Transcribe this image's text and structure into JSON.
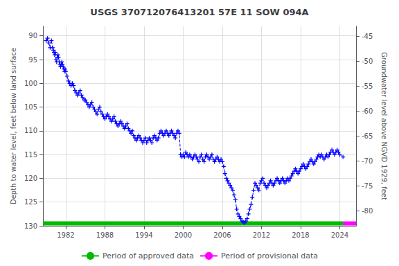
{
  "chart_data": {
    "type": "line",
    "title": "USGS 370712076413201 57E 11 SOW 094A",
    "ylabel": "Depth to water level, feet below land surface",
    "y2label": "Groundwater level above NGVD 1929, feet",
    "xlim": [
      1978.5,
      2026.5
    ],
    "xticks": [
      1982,
      1988,
      1994,
      2000,
      2006,
      2012,
      2018,
      2024
    ],
    "ylim": [
      130,
      88
    ],
    "yticks": [
      90,
      95,
      100,
      105,
      110,
      115,
      120,
      125,
      130
    ],
    "y2lim": [
      -83,
      -43
    ],
    "y2ticks": [
      -45,
      -50,
      -55,
      -60,
      -65,
      -70,
      -75,
      -80
    ],
    "grid": true,
    "legend": "bottom",
    "series": [
      {
        "color": "#0000FF",
        "marker": "plus",
        "line_style": "dashed",
        "x": [
          1979.0,
          1979.2,
          1979.4,
          1979.6,
          1979.8,
          1980.0,
          1980.1,
          1980.2,
          1980.3,
          1980.4,
          1980.5,
          1980.6,
          1980.7,
          1980.8,
          1980.9,
          1981.0,
          1981.1,
          1981.2,
          1981.3,
          1981.4,
          1981.5,
          1981.6,
          1981.7,
          1981.8,
          1981.9,
          1982.0,
          1982.2,
          1982.4,
          1982.6,
          1982.8,
          1983.0,
          1983.2,
          1983.4,
          1983.6,
          1983.8,
          1984.0,
          1984.2,
          1984.4,
          1984.6,
          1984.8,
          1985.0,
          1985.2,
          1985.4,
          1985.6,
          1985.8,
          1986.0,
          1986.2,
          1986.4,
          1986.6,
          1986.8,
          1987.0,
          1987.2,
          1987.4,
          1987.6,
          1987.8,
          1988.0,
          1988.2,
          1988.4,
          1988.6,
          1988.8,
          1989.0,
          1989.2,
          1989.4,
          1989.6,
          1989.8,
          1990.0,
          1990.2,
          1990.4,
          1990.6,
          1990.8,
          1991.0,
          1991.2,
          1991.4,
          1991.6,
          1991.8,
          1992.0,
          1992.2,
          1992.4,
          1992.6,
          1992.8,
          1993.0,
          1993.2,
          1993.4,
          1993.6,
          1993.8,
          1994.0,
          1994.2,
          1994.4,
          1994.6,
          1994.8,
          1995.0,
          1995.2,
          1995.4,
          1995.6,
          1995.8,
          1996.0,
          1996.2,
          1996.4,
          1996.6,
          1996.8,
          1997.0,
          1997.2,
          1997.4,
          1997.6,
          1997.8,
          1998.0,
          1998.2,
          1998.4,
          1998.6,
          1998.8,
          1999.0,
          1999.2,
          1999.4,
          1999.6,
          1999.8,
          2000.0,
          2000.2,
          2000.4,
          2000.6,
          2000.8,
          2001.0,
          2001.2,
          2001.4,
          2001.6,
          2001.8,
          2002.0,
          2002.2,
          2002.4,
          2002.6,
          2002.8,
          2003.0,
          2003.2,
          2003.4,
          2003.6,
          2003.8,
          2004.0,
          2004.2,
          2004.4,
          2004.6,
          2004.8,
          2005.0,
          2005.2,
          2005.4,
          2005.6,
          2005.8,
          2006.0,
          2006.2,
          2006.4,
          2006.6,
          2006.8,
          2007.0,
          2007.2,
          2007.4,
          2007.6,
          2007.8,
          2008.0,
          2008.2,
          2008.4,
          2008.6,
          2008.8,
          2009.0,
          2009.2,
          2009.4,
          2009.6,
          2009.8,
          2010.0,
          2010.2,
          2010.4,
          2010.6,
          2010.8,
          2011.0,
          2011.2,
          2011.4,
          2011.6,
          2011.8,
          2012.0,
          2012.2,
          2012.4,
          2012.6,
          2012.8,
          2013.0,
          2013.2,
          2013.4,
          2013.6,
          2013.8,
          2014.0,
          2014.2,
          2014.4,
          2014.6,
          2014.8,
          2015.0,
          2015.2,
          2015.4,
          2015.6,
          2015.8,
          2016.0,
          2016.2,
          2016.4,
          2016.6,
          2016.8,
          2017.0,
          2017.2,
          2017.4,
          2017.6,
          2017.8,
          2018.0,
          2018.2,
          2018.4,
          2018.6,
          2018.8,
          2019.0,
          2019.2,
          2019.4,
          2019.6,
          2019.8,
          2020.0,
          2020.2,
          2020.4,
          2020.6,
          2020.8,
          2021.0,
          2021.2,
          2021.4,
          2021.6,
          2021.8,
          2022.0,
          2022.2,
          2022.4,
          2022.6,
          2022.8,
          2023.0,
          2023.2,
          2023.4,
          2023.6,
          2023.8,
          2024.0,
          2024.5
        ],
        "values": [
          91.0,
          90.5,
          91.5,
          92.5,
          91.0,
          92.5,
          93.0,
          93.5,
          94.0,
          93.5,
          95.0,
          95.5,
          94.5,
          94.0,
          94.5,
          95.5,
          96.0,
          96.5,
          96.0,
          95.5,
          96.0,
          96.5,
          97.0,
          97.5,
          97.0,
          97.5,
          98.5,
          99.5,
          100.0,
          100.5,
          100.0,
          100.5,
          101.5,
          102.0,
          102.5,
          102.0,
          101.5,
          102.5,
          103.0,
          103.5,
          103.5,
          104.0,
          104.5,
          105.0,
          104.5,
          104.0,
          105.0,
          105.5,
          106.0,
          106.5,
          105.5,
          105.0,
          106.0,
          106.5,
          107.0,
          107.5,
          107.0,
          106.5,
          107.0,
          107.5,
          108.0,
          107.5,
          107.0,
          108.0,
          108.5,
          109.0,
          108.5,
          108.0,
          108.5,
          109.0,
          109.5,
          109.0,
          108.5,
          109.5,
          110.0,
          110.5,
          110.0,
          111.0,
          111.5,
          112.0,
          111.5,
          111.0,
          111.5,
          112.0,
          112.5,
          112.0,
          111.5,
          112.5,
          112.0,
          111.5,
          112.0,
          112.5,
          111.5,
          111.0,
          111.5,
          112.0,
          111.5,
          110.5,
          110.0,
          110.5,
          111.0,
          110.5,
          110.0,
          110.5,
          111.0,
          110.5,
          110.0,
          110.5,
          111.0,
          111.5,
          110.5,
          110.0,
          110.5,
          115.0,
          115.5,
          115.0,
          115.5,
          114.5,
          115.0,
          115.5,
          115.0,
          115.5,
          116.0,
          115.5,
          115.0,
          115.5,
          116.0,
          116.5,
          115.5,
          115.0,
          116.0,
          116.5,
          115.5,
          115.0,
          115.5,
          116.0,
          115.5,
          115.0,
          116.0,
          116.5,
          116.0,
          115.5,
          116.0,
          116.5,
          116.0,
          116.5,
          117.5,
          119.0,
          120.0,
          120.5,
          121.0,
          121.5,
          122.0,
          122.5,
          123.5,
          124.5,
          126.5,
          127.5,
          128.0,
          128.5,
          129.0,
          129.2,
          129.4,
          129.0,
          128.5,
          127.5,
          126.5,
          125.5,
          124.0,
          122.5,
          121.0,
          121.5,
          122.0,
          122.5,
          121.0,
          120.5,
          120.0,
          121.0,
          121.5,
          122.0,
          121.5,
          121.0,
          120.5,
          121.0,
          121.5,
          121.0,
          120.5,
          120.0,
          120.5,
          121.0,
          120.5,
          120.0,
          120.5,
          121.0,
          120.5,
          120.0,
          120.5,
          120.0,
          119.5,
          119.0,
          118.5,
          118.0,
          118.5,
          119.0,
          118.5,
          118.0,
          117.5,
          117.0,
          117.5,
          118.0,
          117.5,
          117.0,
          116.5,
          116.0,
          116.5,
          117.0,
          116.5,
          116.0,
          115.5,
          115.0,
          115.5,
          115.0,
          115.5,
          116.0,
          115.5,
          115.0,
          115.5,
          115.0,
          114.5,
          114.0,
          114.5,
          115.0,
          114.5,
          114.0,
          114.5,
          115.0,
          115.5
        ]
      },
      {
        "name": "Period of approved data",
        "color": "#00BB00",
        "line_style": "solid",
        "x": [
          1978.5,
          2024.5
        ],
        "values": [
          129.5,
          129.5
        ]
      },
      {
        "name": "Period of provisional data",
        "color": "#FF00FF",
        "line_style": "solid",
        "x": [
          2024.5,
          2026.5
        ],
        "values": [
          129.5,
          129.5
        ]
      }
    ]
  }
}
